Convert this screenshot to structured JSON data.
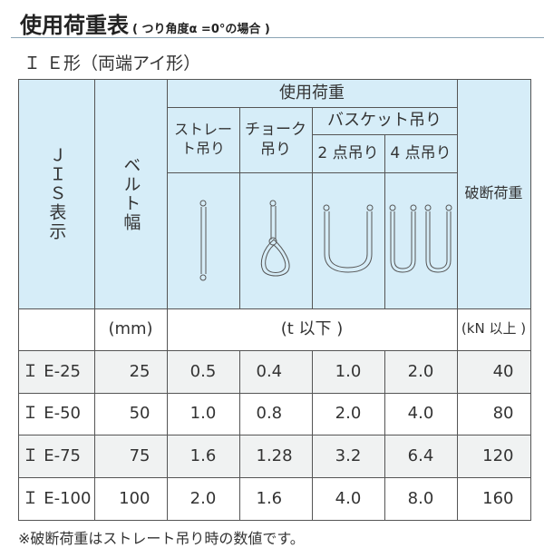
{
  "title": "使用荷重表",
  "title_note": "( つり角度α =0°の場合 )",
  "subtitle": "Ｉ Ｅ形（両端アイ形）",
  "header": {
    "jis": "ＪＩＳ表示",
    "width": "ベルト幅",
    "load": "使用荷重",
    "straight": "ストレート吊り",
    "choke": "チョーク吊り",
    "basket": "バスケット吊り",
    "basket2": "2 点吊り",
    "basket4": "4 点吊り",
    "break": "破断荷重"
  },
  "icons": [
    "straight-sling-icon",
    "choke-sling-icon",
    "basket-2point-sling-icon",
    "basket-4point-sling-icon"
  ],
  "units": {
    "width": "(mm)",
    "load": "(t 以下 )",
    "break": "(kN 以上 )"
  },
  "rows": [
    {
      "jis": "Ｉ E-25",
      "width": "25",
      "straight": "0.5",
      "choke": "0.4",
      "b2": "1.0",
      "b4": "2.0",
      "break": "40"
    },
    {
      "jis": "Ｉ E-50",
      "width": "50",
      "straight": "1.0",
      "choke": "0.8",
      "b2": "2.0",
      "b4": "4.0",
      "break": "80"
    },
    {
      "jis": "Ｉ E-75",
      "width": "75",
      "straight": "1.6",
      "choke": "1.28",
      "b2": "3.2",
      "b4": "6.4",
      "break": "120"
    },
    {
      "jis": "Ｉ E-100",
      "width": "100",
      "straight": "2.0",
      "choke": "1.6",
      "b2": "4.0",
      "b4": "8.0",
      "break": "160"
    }
  ],
  "note": "※破断荷重はストレート吊り時の数値です。",
  "colors": {
    "header_bg": "#d6edf8",
    "row_alt_bg": "#f0f2f2"
  }
}
